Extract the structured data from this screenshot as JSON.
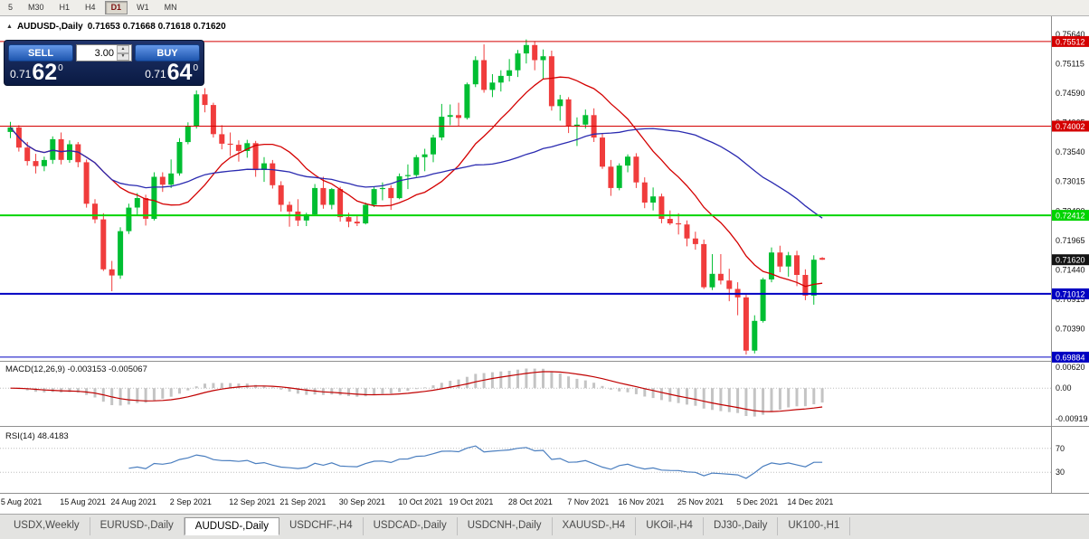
{
  "toolbar": {
    "periods": [
      "5",
      "M30",
      "H1",
      "H4",
      "D1",
      "W1",
      "MN"
    ],
    "active": "D1"
  },
  "icons": {
    "collapse": "▲",
    "volume_up": "▲",
    "volume_down": "▼"
  },
  "chart_header": {
    "symbol": "AUDUSD-,Daily",
    "ohlc": "0.71653 0.71668 0.71618 0.71620"
  },
  "trade_panel": {
    "sell_label": "SELL",
    "buy_label": "BUY",
    "volume": "3.00",
    "sell_price": {
      "prefix": "0.71",
      "big": "62",
      "sup": "0"
    },
    "buy_price": {
      "prefix": "0.71",
      "big": "64",
      "sup": "0"
    }
  },
  "indicators": {
    "macd_label": "MACD(12,26,9) -0.003153 -0.005067",
    "rsi_label": "RSI(14) 48.4183"
  },
  "bottom_tabs": {
    "tabs": [
      "USDX,Weekly",
      "EURUSD-,Daily",
      "AUDUSD-,Daily",
      "USDCHF-,H4",
      "USDCAD-,Daily",
      "USDCNH-,Daily",
      "XAUUSD-,H4",
      "UKOil-,H4",
      "DJ30-,Daily",
      "UK100-,H1"
    ],
    "active": "AUDUSD-,Daily"
  },
  "chart_data": {
    "type": "candlestick",
    "symbol_label": "AUDUSD-,Daily",
    "price_axis": {
      "min": 0.6985,
      "max": 0.7593,
      "ticks": [
        "0.75640",
        "0.75115",
        "0.74590",
        "0.74065",
        "0.73540",
        "0.73015",
        "0.72490",
        "0.71965",
        "0.71440",
        "0.70915",
        "0.70390"
      ]
    },
    "hlines": [
      {
        "value": 0.75512,
        "label": "0.75512",
        "color": "#D40000",
        "width": 1
      },
      {
        "value": 0.74002,
        "label": "0.74002",
        "color": "#D40000",
        "width": 1
      },
      {
        "value": 0.72412,
        "label": "0.72412",
        "color": "#00D400",
        "width": 2
      },
      {
        "value": 0.71012,
        "label": "0.71012",
        "color": "#0000C2",
        "width": 2
      },
      {
        "value": 0.69884,
        "label": "0.69884",
        "color": "#0000C2",
        "width": 1
      }
    ],
    "current_price": {
      "value": 0.7162,
      "label": "0.71620",
      "badge_color": "#141414"
    },
    "moving_averages": [
      {
        "period": 13,
        "color": "#D40000"
      },
      {
        "period": 34,
        "color": "#2A2AB0"
      }
    ],
    "macd": {
      "fast": 12,
      "slow": 26,
      "signal_period": 9,
      "range": {
        "min": -0.0105,
        "max": 0.0068
      },
      "axis_ticks": [
        {
          "value": 0.0062,
          "label": "0.00620"
        },
        {
          "value": 0,
          "label": "0.00"
        },
        {
          "value": -0.00919,
          "label": "-0.00919"
        }
      ]
    },
    "rsi": {
      "period": 14,
      "levels": [
        70,
        30
      ]
    },
    "colors": {
      "up": "#00BE32",
      "down": "#F03C3C",
      "macd_hist": "#C4C4C4",
      "macd_signal": "#C00000",
      "rsi": "#4A7EBF"
    },
    "date_labels": [
      {
        "index": 1,
        "label": "5 Aug 2021"
      },
      {
        "index": 8,
        "label": "15 Aug 2021"
      },
      {
        "index": 14,
        "label": "24 Aug 2021"
      },
      {
        "index": 21,
        "label": "2 Sep 2021"
      },
      {
        "index": 28,
        "label": "12 Sep 2021"
      },
      {
        "index": 34,
        "label": "21 Sep 2021"
      },
      {
        "index": 41,
        "label": "30 Sep 2021"
      },
      {
        "index": 48,
        "label": "10 Oct 2021"
      },
      {
        "index": 54,
        "label": "19 Oct 2021"
      },
      {
        "index": 61,
        "label": "28 Oct 2021"
      },
      {
        "index": 68,
        "label": "7 Nov 2021"
      },
      {
        "index": 74,
        "label": "16 Nov 2021"
      },
      {
        "index": 81,
        "label": "25 Nov 2021"
      },
      {
        "index": 88,
        "label": "5 Dec 2021"
      },
      {
        "index": 94,
        "label": "14 Dec 2021"
      }
    ],
    "candles": [
      [
        0.739,
        0.7408,
        0.7379,
        0.7398
      ],
      [
        0.7398,
        0.7402,
        0.7355,
        0.7362
      ],
      [
        0.7362,
        0.7372,
        0.733,
        0.7338
      ],
      [
        0.7338,
        0.7351,
        0.7316,
        0.7329
      ],
      [
        0.7329,
        0.7346,
        0.732,
        0.734
      ],
      [
        0.734,
        0.7382,
        0.7333,
        0.7377
      ],
      [
        0.7377,
        0.7389,
        0.7332,
        0.734
      ],
      [
        0.734,
        0.7375,
        0.7335,
        0.7368
      ],
      [
        0.7368,
        0.7372,
        0.7327,
        0.7336
      ],
      [
        0.7336,
        0.7341,
        0.7255,
        0.7262
      ],
      [
        0.7262,
        0.727,
        0.7227,
        0.7234
      ],
      [
        0.7234,
        0.7245,
        0.7142,
        0.7145
      ],
      [
        0.7145,
        0.716,
        0.7106,
        0.7134
      ],
      [
        0.7134,
        0.722,
        0.7128,
        0.7213
      ],
      [
        0.7213,
        0.7262,
        0.7208,
        0.7255
      ],
      [
        0.7255,
        0.7281,
        0.724,
        0.7272
      ],
      [
        0.7272,
        0.7278,
        0.7223,
        0.7235
      ],
      [
        0.7235,
        0.7318,
        0.7232,
        0.731
      ],
      [
        0.731,
        0.7318,
        0.7283,
        0.7296
      ],
      [
        0.7296,
        0.7341,
        0.729,
        0.7316
      ],
      [
        0.7316,
        0.7379,
        0.7312,
        0.7372
      ],
      [
        0.7372,
        0.7407,
        0.7368,
        0.74
      ],
      [
        0.74,
        0.7464,
        0.7396,
        0.7457
      ],
      [
        0.7457,
        0.7468,
        0.7425,
        0.7438
      ],
      [
        0.7438,
        0.7442,
        0.738,
        0.7386
      ],
      [
        0.7386,
        0.7402,
        0.7359,
        0.7369
      ],
      [
        0.7369,
        0.7389,
        0.7347,
        0.7367
      ],
      [
        0.7367,
        0.7375,
        0.7337,
        0.7356
      ],
      [
        0.7356,
        0.7376,
        0.7344,
        0.737
      ],
      [
        0.737,
        0.7374,
        0.731,
        0.7322
      ],
      [
        0.7322,
        0.7345,
        0.7301,
        0.7334
      ],
      [
        0.7334,
        0.734,
        0.7289,
        0.7295
      ],
      [
        0.7295,
        0.7302,
        0.7248,
        0.726
      ],
      [
        0.726,
        0.7266,
        0.7221,
        0.7248
      ],
      [
        0.7248,
        0.727,
        0.7222,
        0.7232
      ],
      [
        0.7232,
        0.7246,
        0.7222,
        0.7243
      ],
      [
        0.7243,
        0.7297,
        0.724,
        0.729
      ],
      [
        0.729,
        0.731,
        0.7253,
        0.726
      ],
      [
        0.726,
        0.729,
        0.7252,
        0.7288
      ],
      [
        0.7288,
        0.7292,
        0.723,
        0.7238
      ],
      [
        0.7238,
        0.7246,
        0.722,
        0.723
      ],
      [
        0.723,
        0.724,
        0.7222,
        0.7227
      ],
      [
        0.7227,
        0.7264,
        0.7225,
        0.726
      ],
      [
        0.726,
        0.7292,
        0.7256,
        0.7288
      ],
      [
        0.7288,
        0.73,
        0.7268,
        0.729
      ],
      [
        0.729,
        0.7295,
        0.7251,
        0.7272
      ],
      [
        0.7272,
        0.7316,
        0.727,
        0.7311
      ],
      [
        0.7311,
        0.7332,
        0.7288,
        0.7313
      ],
      [
        0.7313,
        0.7349,
        0.731,
        0.7345
      ],
      [
        0.7345,
        0.736,
        0.732,
        0.735
      ],
      [
        0.735,
        0.7385,
        0.7336,
        0.738
      ],
      [
        0.738,
        0.744,
        0.7375,
        0.7417
      ],
      [
        0.7417,
        0.7439,
        0.7402,
        0.742
      ],
      [
        0.742,
        0.7442,
        0.74,
        0.7415
      ],
      [
        0.7415,
        0.7478,
        0.7412,
        0.7475
      ],
      [
        0.7475,
        0.7525,
        0.747,
        0.7518
      ],
      [
        0.7518,
        0.7546,
        0.746,
        0.7465
      ],
      [
        0.7465,
        0.7493,
        0.7452,
        0.7478
      ],
      [
        0.7478,
        0.75,
        0.7462,
        0.749
      ],
      [
        0.749,
        0.752,
        0.748,
        0.75
      ],
      [
        0.75,
        0.7536,
        0.7488,
        0.753
      ],
      [
        0.753,
        0.7555,
        0.7512,
        0.7545
      ],
      [
        0.7545,
        0.7552,
        0.75,
        0.7518
      ],
      [
        0.7518,
        0.7537,
        0.7485,
        0.7525
      ],
      [
        0.7525,
        0.7535,
        0.7428,
        0.7436
      ],
      [
        0.7436,
        0.7456,
        0.741,
        0.7448
      ],
      [
        0.7448,
        0.7452,
        0.7388,
        0.74
      ],
      [
        0.74,
        0.7416,
        0.7365,
        0.7403
      ],
      [
        0.7403,
        0.743,
        0.7396,
        0.742
      ],
      [
        0.742,
        0.7432,
        0.7372,
        0.738
      ],
      [
        0.738,
        0.7388,
        0.7324,
        0.7328
      ],
      [
        0.7328,
        0.734,
        0.7276,
        0.729
      ],
      [
        0.729,
        0.7334,
        0.7286,
        0.733
      ],
      [
        0.733,
        0.735,
        0.7318,
        0.7346
      ],
      [
        0.7346,
        0.7352,
        0.729,
        0.73
      ],
      [
        0.73,
        0.7309,
        0.7254,
        0.7264
      ],
      [
        0.7264,
        0.7291,
        0.725,
        0.7275
      ],
      [
        0.7275,
        0.728,
        0.7227,
        0.7235
      ],
      [
        0.7235,
        0.725,
        0.7224,
        0.7227
      ],
      [
        0.7227,
        0.7245,
        0.7207,
        0.7225
      ],
      [
        0.7225,
        0.7232,
        0.7186,
        0.72
      ],
      [
        0.72,
        0.7212,
        0.718,
        0.719
      ],
      [
        0.719,
        0.7198,
        0.711,
        0.7113
      ],
      [
        0.7113,
        0.7172,
        0.7108,
        0.7137
      ],
      [
        0.7137,
        0.7172,
        0.7118,
        0.7125
      ],
      [
        0.7125,
        0.7146,
        0.7088,
        0.711
      ],
      [
        0.711,
        0.7122,
        0.7063,
        0.7095
      ],
      [
        0.7095,
        0.71,
        0.6993,
        0.7
      ],
      [
        0.7,
        0.7063,
        0.6995,
        0.7053
      ],
      [
        0.7053,
        0.713,
        0.705,
        0.7127
      ],
      [
        0.7127,
        0.7184,
        0.7122,
        0.7175
      ],
      [
        0.7175,
        0.7187,
        0.714,
        0.715
      ],
      [
        0.715,
        0.7176,
        0.7132,
        0.717
      ],
      [
        0.717,
        0.7178,
        0.7115,
        0.7135
      ],
      [
        0.7135,
        0.7145,
        0.709,
        0.7098
      ],
      [
        0.7098,
        0.717,
        0.7082,
        0.7162
      ],
      [
        0.71653,
        0.71668,
        0.71618,
        0.7162
      ]
    ]
  }
}
